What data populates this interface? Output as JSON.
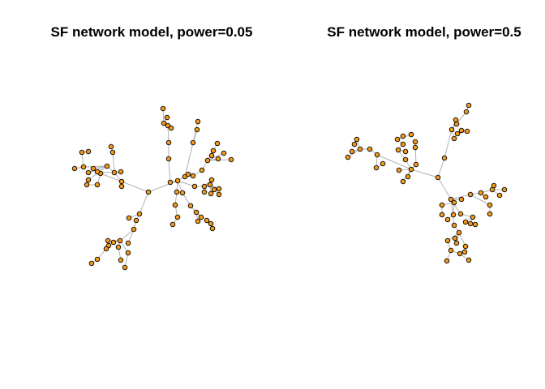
{
  "plots": [
    {
      "title": "SF network model, power=0.05"
    },
    {
      "title": "SF network model, power=0.5"
    }
  ],
  "style": {
    "edge_color": "#b3b3b3",
    "node_fill": "#f29a1a",
    "node_stroke": "#000000"
  }
}
